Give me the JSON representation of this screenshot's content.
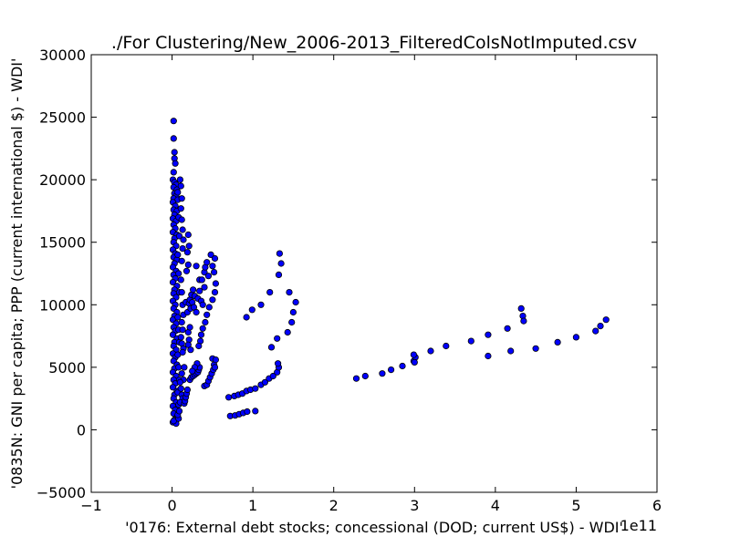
{
  "chart_data": {
    "type": "scatter",
    "title": "./For Clustering/New_2006-2013_FilteredColsNotImputed.csv",
    "xlabel": "'0176: External debt stocks; concessional  (DOD; current US$) - WDI'",
    "ylabel": "'0835N: GNI per capita; PPP  (current international $) - WDI'",
    "x_scale_label": "1e11",
    "xlim": [
      -1,
      6
    ],
    "ylim": [
      -5000,
      30000
    ],
    "x_ticks": [
      -1,
      0,
      1,
      2,
      3,
      4,
      5,
      6
    ],
    "x_tick_labels": [
      "−1",
      "0",
      "1",
      "2",
      "3",
      "4",
      "5",
      "6"
    ],
    "y_ticks": [
      -5000,
      0,
      5000,
      10000,
      15000,
      20000,
      25000,
      30000
    ],
    "y_tick_labels": [
      "−5000",
      "0",
      "5000",
      "10000",
      "15000",
      "20000",
      "25000",
      "30000"
    ],
    "grid": false,
    "marker_color": "#0000ff",
    "marker_edge_color": "#000000",
    "series": [
      {
        "points": [
          [
            0.02,
            24700
          ],
          [
            0.02,
            23300
          ],
          [
            0.03,
            22200
          ],
          [
            0.03,
            21700
          ],
          [
            0.04,
            21300
          ],
          [
            0.02,
            20600
          ],
          [
            0.01,
            20000
          ],
          [
            0.03,
            19800
          ],
          [
            0.05,
            19600
          ],
          [
            0.02,
            19400
          ],
          [
            0.06,
            19200
          ],
          [
            0.03,
            18900
          ],
          [
            0.05,
            18700
          ],
          [
            0.02,
            18500
          ],
          [
            0.07,
            18400
          ],
          [
            0.01,
            18200
          ],
          [
            0.04,
            17900
          ],
          [
            0.02,
            17600
          ],
          [
            0.06,
            17500
          ],
          [
            0.03,
            17200
          ],
          [
            0.01,
            16900
          ],
          [
            0.05,
            16700
          ],
          [
            0.02,
            16400
          ],
          [
            0.04,
            16100
          ],
          [
            0.01,
            15800
          ],
          [
            0.06,
            15600
          ],
          [
            0.03,
            15300
          ],
          [
            0.02,
            15000
          ],
          [
            0.05,
            14700
          ],
          [
            0.01,
            14400
          ],
          [
            0.04,
            14100
          ],
          [
            0.02,
            13800
          ],
          [
            0.06,
            13600
          ],
          [
            0.03,
            13300
          ],
          [
            0.01,
            13000
          ],
          [
            0.05,
            12700
          ],
          [
            0.02,
            12400
          ],
          [
            0.04,
            12100
          ],
          [
            0.01,
            11800
          ],
          [
            0.06,
            11500
          ],
          [
            0.03,
            11200
          ],
          [
            0.02,
            10900
          ],
          [
            0.05,
            10600
          ],
          [
            0.01,
            10300
          ],
          [
            0.04,
            10000
          ],
          [
            0.02,
            9700
          ],
          [
            0.06,
            9400
          ],
          [
            0.03,
            9100
          ],
          [
            0.01,
            8800
          ],
          [
            0.05,
            8500
          ],
          [
            0.02,
            8200
          ],
          [
            0.04,
            7900
          ],
          [
            0.01,
            7600
          ],
          [
            0.06,
            7300
          ],
          [
            0.03,
            7000
          ],
          [
            0.02,
            6700
          ],
          [
            0.05,
            6400
          ],
          [
            0.01,
            6100
          ],
          [
            0.04,
            5800
          ],
          [
            0.02,
            5500
          ],
          [
            0.06,
            5200
          ],
          [
            0.03,
            4900
          ],
          [
            0.01,
            4600
          ],
          [
            0.05,
            4300
          ],
          [
            0.02,
            4000
          ],
          [
            0.04,
            3700
          ],
          [
            0.01,
            3400
          ],
          [
            0.06,
            3100
          ],
          [
            0.03,
            2800
          ],
          [
            0.02,
            2500
          ],
          [
            0.05,
            2200
          ],
          [
            0.01,
            1900
          ],
          [
            0.04,
            1600
          ],
          [
            0.02,
            1300
          ],
          [
            0.06,
            1000
          ],
          [
            0.03,
            800
          ],
          [
            0.01,
            600
          ],
          [
            0.05,
            500
          ],
          [
            0.02,
            700
          ],
          [
            0.08,
            900
          ],
          [
            0.07,
            1200
          ],
          [
            0.09,
            1500
          ],
          [
            0.08,
            2000
          ],
          [
            0.07,
            3000
          ],
          [
            0.09,
            4000
          ],
          [
            0.08,
            5000
          ],
          [
            0.07,
            6000
          ],
          [
            0.09,
            7000
          ],
          [
            0.08,
            8000
          ],
          [
            0.07,
            9000
          ],
          [
            0.09,
            11000
          ],
          [
            0.08,
            12500
          ],
          [
            0.07,
            14000
          ],
          [
            0.09,
            15500
          ],
          [
            0.08,
            17000
          ],
          [
            0.07,
            19000
          ],
          [
            0.1,
            20000
          ],
          [
            0.11,
            19500
          ],
          [
            0.12,
            18500
          ],
          [
            0.11,
            17700
          ],
          [
            0.12,
            16800
          ],
          [
            0.13,
            16000
          ],
          [
            0.14,
            15200
          ],
          [
            0.13,
            14500
          ],
          [
            0.12,
            13500
          ],
          [
            0.11,
            12000
          ],
          [
            0.12,
            11000
          ],
          [
            0.13,
            10000
          ],
          [
            0.14,
            9200
          ],
          [
            0.12,
            8600
          ],
          [
            0.13,
            8000
          ],
          [
            0.11,
            7400
          ],
          [
            0.12,
            6900
          ],
          [
            0.14,
            6500
          ],
          [
            0.13,
            6200
          ],
          [
            0.15,
            5000
          ],
          [
            0.12,
            4500
          ],
          [
            0.14,
            4000
          ],
          [
            0.1,
            3800
          ],
          [
            0.11,
            3300
          ],
          [
            0.12,
            2800
          ],
          [
            0.13,
            2500
          ],
          [
            0.1,
            2200
          ],
          [
            0.15,
            2100
          ],
          [
            0.16,
            2300
          ],
          [
            0.17,
            2600
          ],
          [
            0.18,
            2900
          ],
          [
            0.19,
            3200
          ],
          [
            0.2,
            15600
          ],
          [
            0.21,
            14700
          ],
          [
            0.19,
            14200
          ],
          [
            0.2,
            13200
          ],
          [
            0.18,
            12700
          ],
          [
            0.17,
            10200
          ],
          [
            0.19,
            9400
          ],
          [
            0.21,
            10100
          ],
          [
            0.23,
            9700
          ],
          [
            0.22,
            10400
          ],
          [
            0.24,
            10800
          ],
          [
            0.2,
            7800
          ],
          [
            0.22,
            8200
          ],
          [
            0.21,
            7200
          ],
          [
            0.2,
            6800
          ],
          [
            0.23,
            6400
          ],
          [
            0.25,
            10200
          ],
          [
            0.26,
            11200
          ],
          [
            0.28,
            10700
          ],
          [
            0.27,
            9800
          ],
          [
            0.3,
            9400
          ],
          [
            0.32,
            10500
          ],
          [
            0.34,
            11100
          ],
          [
            0.36,
            10300
          ],
          [
            0.38,
            10000
          ],
          [
            0.4,
            11400
          ],
          [
            0.3,
            13100
          ],
          [
            0.34,
            12000
          ],
          [
            0.37,
            12000
          ],
          [
            0.4,
            12600
          ],
          [
            0.41,
            13000
          ],
          [
            0.43,
            13400
          ],
          [
            0.45,
            12300
          ],
          [
            0.48,
            14000
          ],
          [
            0.5,
            13100
          ],
          [
            0.52,
            12600
          ],
          [
            0.53,
            13700
          ],
          [
            0.54,
            11700
          ],
          [
            0.53,
            11000
          ],
          [
            0.5,
            10400
          ],
          [
            0.46,
            9800
          ],
          [
            0.43,
            9200
          ],
          [
            0.41,
            8600
          ],
          [
            0.38,
            8100
          ],
          [
            0.36,
            7600
          ],
          [
            0.35,
            7100
          ],
          [
            0.33,
            6700
          ],
          [
            0.22,
            4000
          ],
          [
            0.24,
            4200
          ],
          [
            0.26,
            4300
          ],
          [
            0.28,
            4400
          ],
          [
            0.3,
            4500
          ],
          [
            0.32,
            4600
          ],
          [
            0.33,
            4800
          ],
          [
            0.34,
            5000
          ],
          [
            0.31,
            5300
          ],
          [
            0.28,
            5000
          ],
          [
            0.25,
            4700
          ],
          [
            0.4,
            3500
          ],
          [
            0.43,
            3600
          ],
          [
            0.45,
            3900
          ],
          [
            0.47,
            4200
          ],
          [
            0.49,
            4500
          ],
          [
            0.51,
            4800
          ],
          [
            0.52,
            5200
          ],
          [
            0.5,
            5700
          ],
          [
            0.54,
            5600
          ],
          [
            0.53,
            5000
          ],
          [
            0.7,
            2600
          ],
          [
            0.77,
            2700
          ],
          [
            0.82,
            2800
          ],
          [
            0.87,
            2900
          ],
          [
            0.92,
            3100
          ],
          [
            0.97,
            3200
          ],
          [
            1.03,
            3300
          ],
          [
            1.1,
            3600
          ],
          [
            1.15,
            3800
          ],
          [
            1.2,
            4100
          ],
          [
            1.25,
            4300
          ],
          [
            1.3,
            4600
          ],
          [
            1.32,
            5000
          ],
          [
            1.31,
            5300
          ],
          [
            0.72,
            1100
          ],
          [
            0.78,
            1150
          ],
          [
            0.83,
            1250
          ],
          [
            0.88,
            1350
          ],
          [
            0.93,
            1450
          ],
          [
            1.03,
            1500
          ],
          [
            0.92,
            9000
          ],
          [
            0.99,
            9600
          ],
          [
            1.1,
            10000
          ],
          [
            1.21,
            11000
          ],
          [
            1.32,
            12400
          ],
          [
            1.35,
            13300
          ],
          [
            1.33,
            14100
          ],
          [
            1.45,
            11000
          ],
          [
            1.53,
            10200
          ],
          [
            1.5,
            9400
          ],
          [
            1.48,
            8600
          ],
          [
            1.43,
            7800
          ],
          [
            1.3,
            7300
          ],
          [
            1.23,
            6600
          ],
          [
            2.28,
            4100
          ],
          [
            2.39,
            4300
          ],
          [
            2.6,
            4500
          ],
          [
            2.71,
            4800
          ],
          [
            2.85,
            5100
          ],
          [
            2.99,
            5500
          ],
          [
            3.01,
            5800
          ],
          [
            2.99,
            6000
          ],
          [
            3.0,
            5400
          ],
          [
            3.2,
            6300
          ],
          [
            3.39,
            6700
          ],
          [
            3.7,
            7100
          ],
          [
            3.91,
            7600
          ],
          [
            3.91,
            5900
          ],
          [
            4.15,
            8100
          ],
          [
            4.19,
            6300
          ],
          [
            4.32,
            9700
          ],
          [
            4.34,
            9100
          ],
          [
            4.35,
            8700
          ],
          [
            4.5,
            6500
          ],
          [
            4.77,
            7000
          ],
          [
            5.0,
            7400
          ],
          [
            5.24,
            7900
          ],
          [
            5.3,
            8300
          ],
          [
            5.37,
            8800
          ]
        ]
      }
    ]
  }
}
